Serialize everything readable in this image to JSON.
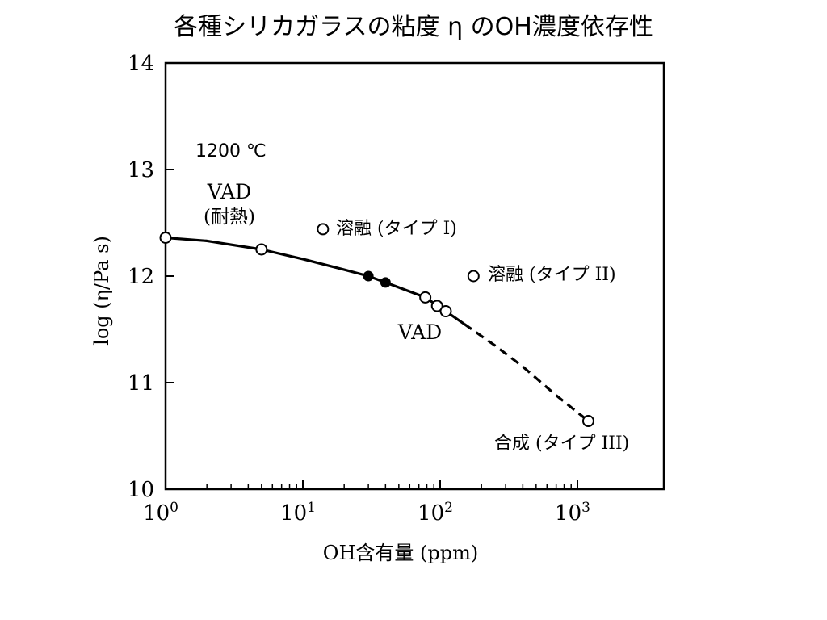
{
  "title": "各種シリカガラスの粘度 η のOH濃度依存性",
  "chart_data": {
    "type": "scatter",
    "xlabel": "OH含有量 (ppm)",
    "ylabel": "log (η/Pa s)",
    "xscale": "log",
    "xlim": [
      1,
      1500
    ],
    "ylim": [
      10,
      14
    ],
    "xticks": [
      {
        "value": 1,
        "base": "10",
        "exp": "0"
      },
      {
        "value": 10,
        "base": "10",
        "exp": "1"
      },
      {
        "value": 100,
        "base": "10",
        "exp": "2"
      },
      {
        "value": 1000,
        "base": "10",
        "exp": "3"
      }
    ],
    "yticks": [
      "10",
      "11",
      "12",
      "13",
      "14"
    ],
    "annotations": {
      "temperature": "1200 ℃",
      "vad_top": "VAD",
      "vad_top_sub": "(耐熱)",
      "vad_mid": "VAD",
      "fused_type1": "溶融 (タイプ I)",
      "fused_type2": "溶融 (タイプ II)",
      "synthetic_type3": "合成 (タイプ III)"
    },
    "series": [
      {
        "name": "VAD",
        "marker": "open",
        "points": [
          [
            1,
            12.36
          ],
          [
            5,
            12.25
          ],
          [
            78,
            11.8
          ],
          [
            95,
            11.72
          ],
          [
            110,
            11.67
          ]
        ]
      },
      {
        "name": "VAD",
        "marker": "filled",
        "points": [
          [
            30,
            12.0
          ],
          [
            40,
            11.94
          ]
        ]
      },
      {
        "name": "溶融 (タイプ I)",
        "marker": "open",
        "points": [
          [
            14,
            12.44
          ]
        ]
      },
      {
        "name": "溶融 (タイプ II)",
        "marker": "open",
        "points": [
          [
            175,
            12.0
          ]
        ]
      },
      {
        "name": "合成 (タイプ III)",
        "marker": "open",
        "points": [
          [
            1200,
            10.64
          ]
        ]
      }
    ],
    "fit_curve": {
      "solid": [
        [
          1,
          12.36
        ],
        [
          2,
          12.33
        ],
        [
          5,
          12.25
        ],
        [
          10,
          12.16
        ],
        [
          20,
          12.06
        ],
        [
          30,
          12.0
        ],
        [
          40,
          11.94
        ],
        [
          78,
          11.8
        ],
        [
          110,
          11.67
        ],
        [
          150,
          11.55
        ]
      ],
      "dashed": [
        [
          150,
          11.55
        ],
        [
          250,
          11.35
        ],
        [
          400,
          11.15
        ],
        [
          700,
          10.88
        ],
        [
          1200,
          10.64
        ]
      ]
    }
  }
}
